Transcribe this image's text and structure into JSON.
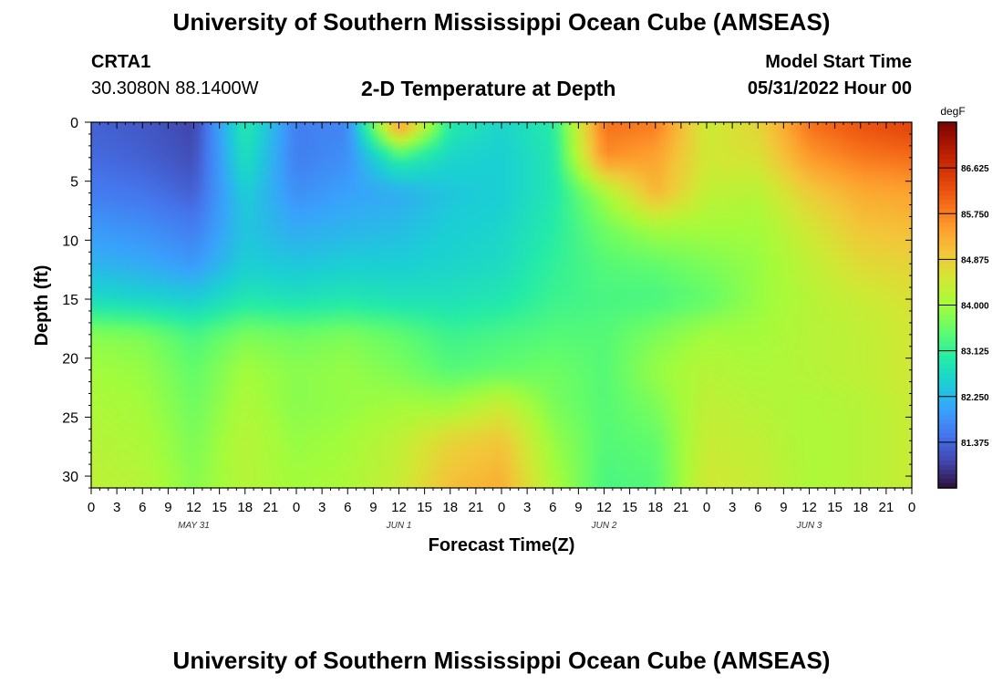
{
  "header": {
    "title": "University of Southern Mississippi Ocean Cube (AMSEAS)",
    "station_name": "CRTA1",
    "station_coords": "30.3080N  88.1400W",
    "subtitle": "2-D Temperature at Depth",
    "model_start_label": "Model Start Time",
    "model_start_value": "05/31/2022 Hour 00"
  },
  "footer": {
    "title": "University of Southern Mississippi Ocean Cube (AMSEAS)"
  },
  "colors": {
    "colormap": [
      "#30123b",
      "#4145ab",
      "#4675ed",
      "#39a2fc",
      "#1bcfd4",
      "#24eca6",
      "#61fc6c",
      "#a4fc3b",
      "#d1e834",
      "#f3c63a",
      "#fe9b2d",
      "#f36315",
      "#d93806",
      "#b11901",
      "#7a0402"
    ]
  },
  "chart_data": {
    "type": "heatmap",
    "title": "2-D Temperature at Depth",
    "xlabel": "Forecast Time(Z)",
    "ylabel": "Depth (ft)",
    "x_hours_range": [
      0,
      96
    ],
    "x_tick_step_hours": 3,
    "x_tick_labels": [
      "0",
      "3",
      "6",
      "9",
      "12",
      "15",
      "18",
      "21",
      "0",
      "3",
      "6",
      "9",
      "12",
      "15",
      "18",
      "21",
      "0",
      "3",
      "6",
      "9",
      "12",
      "15",
      "18",
      "21",
      "0",
      "3",
      "6",
      "9",
      "12",
      "15",
      "18",
      "21",
      "0"
    ],
    "date_labels": [
      {
        "hour": 12,
        "text": "MAY 31"
      },
      {
        "hour": 36,
        "text": "JUN 1"
      },
      {
        "hour": 60,
        "text": "JUN 2"
      },
      {
        "hour": 84,
        "text": "JUN 3"
      }
    ],
    "y_range": [
      0,
      31
    ],
    "y_ticks": [
      0,
      5,
      10,
      15,
      20,
      25,
      30
    ],
    "y_tick_labels": [
      "0",
      "5",
      "10",
      "15",
      "20",
      "25",
      "30"
    ],
    "colorbar": {
      "unit": "degF",
      "range": [
        80.5,
        87.5
      ],
      "ticks": [
        81.375,
        82.25,
        83.125,
        84.0,
        84.875,
        85.75,
        86.625
      ],
      "tick_labels": [
        "81.375",
        "82.250",
        "83.125",
        "84.000",
        "84.875",
        "85.750",
        "86.625"
      ]
    },
    "grid_hours": [
      0,
      6,
      12,
      18,
      24,
      30,
      36,
      42,
      48,
      54,
      60,
      66,
      72,
      78,
      84,
      90,
      96
    ],
    "grid_depths": [
      0,
      3,
      6,
      9,
      12,
      15,
      18,
      21,
      24,
      27,
      31
    ],
    "values": [
      [
        81.3,
        81.2,
        81.0,
        83.0,
        81.6,
        81.7,
        85.8,
        83.0,
        82.6,
        83.0,
        85.9,
        85.8,
        84.4,
        84.8,
        85.9,
        86.2,
        86.4
      ],
      [
        81.4,
        81.3,
        81.1,
        82.8,
        81.6,
        81.8,
        83.1,
        82.6,
        82.5,
        82.9,
        85.6,
        85.4,
        84.5,
        84.6,
        85.5,
        85.8,
        85.9
      ],
      [
        81.6,
        81.5,
        81.3,
        82.5,
        81.8,
        82.0,
        82.1,
        82.4,
        82.5,
        82.9,
        84.0,
        85.2,
        84.3,
        84.2,
        84.9,
        85.3,
        85.4
      ],
      [
        81.9,
        81.8,
        81.6,
        82.4,
        82.1,
        82.2,
        82.3,
        82.5,
        82.6,
        83.0,
        83.6,
        84.0,
        84.0,
        84.0,
        84.5,
        85.0,
        85.1
      ],
      [
        82.2,
        82.1,
        81.9,
        82.5,
        82.4,
        82.5,
        82.5,
        82.6,
        82.7,
        83.1,
        83.4,
        83.5,
        83.7,
        83.9,
        84.3,
        84.7,
        84.8
      ],
      [
        82.7,
        82.6,
        82.5,
        82.9,
        82.8,
        82.9,
        82.8,
        82.8,
        82.9,
        83.2,
        83.3,
        83.3,
        83.5,
        83.9,
        84.2,
        84.4,
        84.6
      ],
      [
        83.8,
        83.7,
        83.3,
        83.7,
        83.6,
        83.7,
        83.5,
        83.2,
        83.3,
        83.4,
        83.4,
        83.7,
        84.0,
        84.0,
        84.2,
        84.3,
        84.5
      ],
      [
        84.0,
        83.9,
        83.5,
        84.0,
        83.8,
        83.9,
        83.7,
        83.4,
        83.5,
        83.6,
        83.4,
        83.9,
        84.2,
        84.1,
        84.2,
        84.3,
        84.5
      ],
      [
        84.1,
        84.0,
        83.6,
        84.1,
        83.8,
        83.9,
        84.0,
        84.0,
        84.4,
        83.7,
        83.4,
        83.7,
        84.3,
        84.2,
        84.1,
        84.2,
        84.4
      ],
      [
        84.2,
        84.1,
        83.7,
        84.2,
        83.9,
        84.0,
        84.3,
        84.8,
        85.0,
        83.9,
        83.4,
        83.5,
        84.4,
        84.3,
        84.1,
        84.2,
        84.4
      ],
      [
        84.3,
        84.2,
        83.8,
        84.2,
        84.0,
        84.1,
        84.4,
        85.1,
        85.3,
        84.1,
        83.3,
        83.4,
        84.5,
        84.4,
        84.1,
        84.2,
        84.4
      ]
    ]
  }
}
